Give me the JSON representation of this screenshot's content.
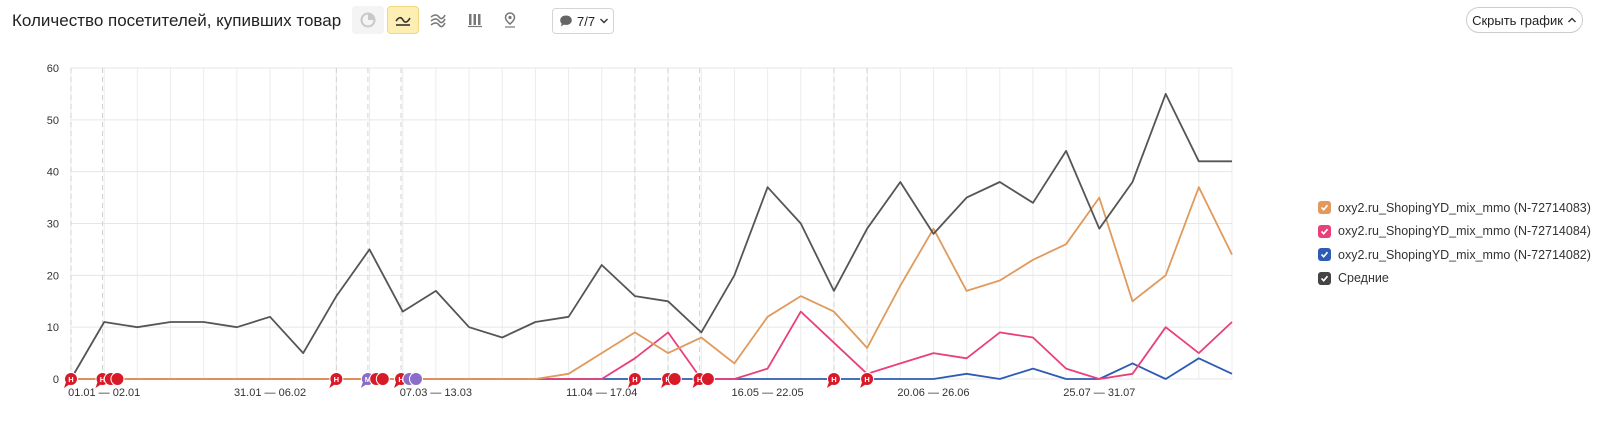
{
  "header": {
    "title": "Количество посетителей, купивших товар",
    "comments_count": "7/7",
    "hide_chart_label": "Скрыть график",
    "tools": [
      {
        "name": "pie-chart-icon",
        "state": "disabled"
      },
      {
        "name": "line-chart-icon",
        "state": "active"
      },
      {
        "name": "area-chart-icon",
        "state": "normal"
      },
      {
        "name": "bar-chart-icon",
        "state": "normal"
      },
      {
        "name": "map-pin-icon",
        "state": "normal"
      }
    ]
  },
  "colors": {
    "series_1": "#e09a5c",
    "series_2": "#e8407a",
    "series_3": "#2e5bb5",
    "average": "#555555",
    "marker_red": "#d81a28",
    "marker_purple": "#8a6cc9",
    "active_tool": "#fdeeb4"
  },
  "legend": [
    {
      "label": "oxy2.ru_ShopingYD_mix_mmo (N-72714083)",
      "color": "#e09a5c",
      "checked": true
    },
    {
      "label": "oxy2.ru_ShopingYD_mix_mmo (N-72714084)",
      "color": "#e8407a",
      "checked": true
    },
    {
      "label": "oxy2.ru_ShopingYD_mix_mmo (N-72714082)",
      "color": "#2e5bb5",
      "checked": true
    },
    {
      "label": "Средние",
      "color": "#555555",
      "checked": true
    }
  ],
  "chart_data": {
    "type": "line",
    "ylim": [
      0,
      60
    ],
    "yticks": [
      0,
      10,
      20,
      30,
      40,
      50,
      60
    ],
    "grid": true,
    "legend_position": "right",
    "xlabels": [
      {
        "index": 1,
        "label": "01.01 — 02.01"
      },
      {
        "index": 6,
        "label": "31.01 — 06.02"
      },
      {
        "index": 11,
        "label": "07.03 — 13.03"
      },
      {
        "index": 16,
        "label": "11.04 — 17.04"
      },
      {
        "index": 21,
        "label": "16.05 — 22.05"
      },
      {
        "index": 26,
        "label": "20.06 — 26.06"
      },
      {
        "index": 31,
        "label": "25.07 — 31.07"
      }
    ],
    "points": 36,
    "series": [
      {
        "name": "oxy2.ru_ShopingYD_mix_mmo (N-72714083)",
        "color": "#e09a5c",
        "values": [
          0,
          0,
          0,
          0,
          0,
          0,
          0,
          0,
          0,
          0,
          0,
          0,
          0,
          0,
          0,
          1,
          5,
          9,
          5,
          8,
          3,
          12,
          16,
          13,
          6,
          18,
          29,
          17,
          19,
          23,
          26,
          35,
          15,
          20,
          37,
          24
        ]
      },
      {
        "name": "oxy2.ru_ShopingYD_mix_mmo (N-72714084)",
        "color": "#e8407a",
        "values": [
          0,
          0,
          0,
          0,
          0,
          0,
          0,
          0,
          0,
          0,
          0,
          0,
          0,
          0,
          0,
          0,
          0,
          4,
          9,
          0,
          0,
          2,
          13,
          7,
          1,
          3,
          5,
          4,
          9,
          8,
          2,
          0,
          1,
          10,
          5,
          11
        ]
      },
      {
        "name": "oxy2.ru_ShopingYD_mix_mmo (N-72714082)",
        "color": "#2e5bb5",
        "values": [
          0,
          0,
          0,
          0,
          0,
          0,
          0,
          0,
          0,
          0,
          0,
          0,
          0,
          0,
          0,
          0,
          0,
          0,
          0,
          0,
          0,
          0,
          0,
          0,
          0,
          0,
          0,
          1,
          0,
          2,
          0,
          0,
          3,
          0,
          4,
          1
        ]
      },
      {
        "name": "Средние",
        "color": "#555555",
        "values": [
          0,
          11,
          10,
          11,
          11,
          10,
          12,
          5,
          16,
          25,
          13,
          17,
          10,
          8,
          11,
          12,
          22,
          16,
          15,
          9,
          20,
          37,
          30,
          17,
          29,
          38,
          28,
          35,
          38,
          34,
          44,
          29,
          38,
          55,
          42,
          42
        ]
      }
    ],
    "annotations": [
      {
        "index": 0.0,
        "letter": "Н",
        "kind": "red"
      },
      {
        "index": 0.95,
        "letter": "Н",
        "kind": "red"
      },
      {
        "index": 1.2,
        "letter": "",
        "kind": "red"
      },
      {
        "index": 1.4,
        "letter": "",
        "kind": "red"
      },
      {
        "index": 8.0,
        "letter": "Н",
        "kind": "red"
      },
      {
        "index": 8.95,
        "letter": "М",
        "kind": "purple"
      },
      {
        "index": 9.2,
        "letter": "",
        "kind": "red"
      },
      {
        "index": 9.4,
        "letter": "",
        "kind": "red"
      },
      {
        "index": 9.95,
        "letter": "Н",
        "kind": "red"
      },
      {
        "index": 10.2,
        "letter": "",
        "kind": "purple"
      },
      {
        "index": 10.4,
        "letter": "",
        "kind": "purple"
      },
      {
        "index": 17.0,
        "letter": "Н",
        "kind": "red"
      },
      {
        "index": 18.0,
        "letter": "Н",
        "kind": "red"
      },
      {
        "index": 18.2,
        "letter": "",
        "kind": "red"
      },
      {
        "index": 18.95,
        "letter": "Н",
        "kind": "red"
      },
      {
        "index": 19.2,
        "letter": "",
        "kind": "red"
      },
      {
        "index": 23.0,
        "letter": "Н",
        "kind": "red"
      },
      {
        "index": 24.0,
        "letter": "Н",
        "kind": "red"
      }
    ]
  }
}
